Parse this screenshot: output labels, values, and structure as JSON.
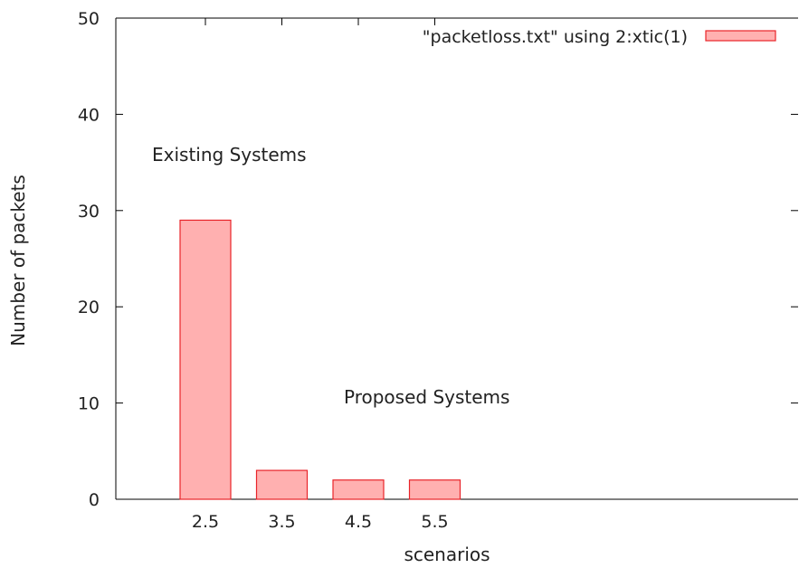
{
  "chart_data": {
    "type": "bar",
    "categories": [
      "2.5",
      "3.5",
      "4.5",
      "5.5"
    ],
    "series": [
      {
        "name": "\"packetloss.txt\" using 2:xtic(1)",
        "values": [
          29,
          3,
          2,
          2
        ]
      }
    ],
    "xlabel": "scenarios",
    "ylabel": "Number of packets",
    "ylim": [
      0,
      50
    ],
    "yticks": [
      0,
      10,
      20,
      30,
      40,
      50
    ],
    "grid": false,
    "legend": "top-right",
    "annotations": [
      {
        "text": "Existing Systems"
      },
      {
        "text": "Proposed Systems"
      }
    ],
    "colors": {
      "bar_fill": "#ffb0b0",
      "bar_stroke": "#e8242a"
    }
  }
}
